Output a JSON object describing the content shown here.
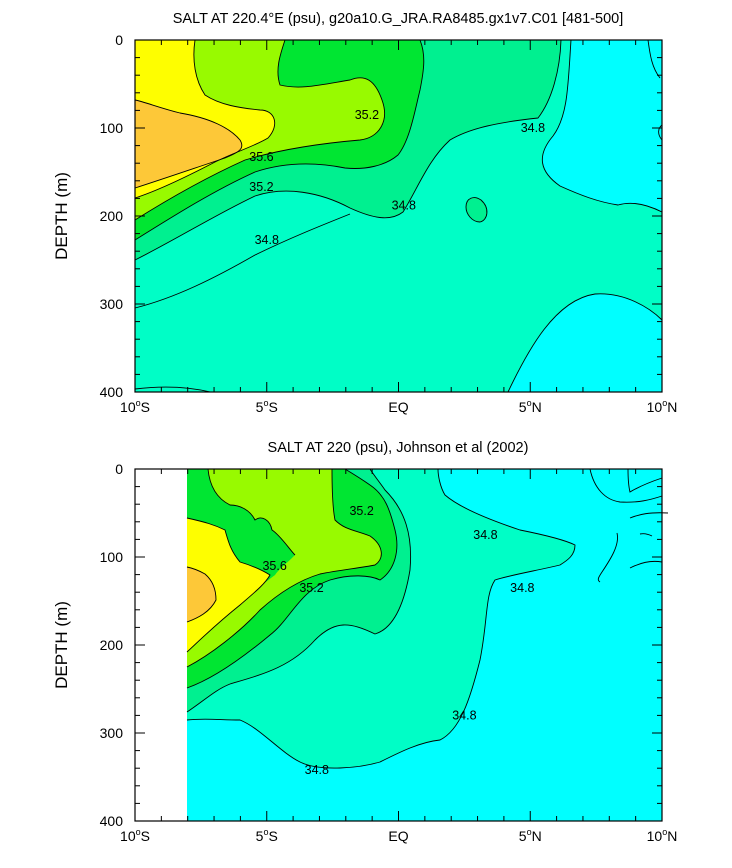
{
  "colors": {
    "c_low": "#00ffff",
    "c_348": "#00fec6",
    "c_350": "#00f090",
    "c_352": "#00e632",
    "c_354": "#98fa00",
    "c_356": "#fefe00",
    "c_358": "#fdc838",
    "missing": "#ffffff"
  },
  "chart_data": [
    {
      "type": "contour",
      "title": "SALT AT 220.4°E (psu), g20a10.G_JRA.RA8485.gx1v7.C01 [481-500]",
      "ylabel": "DEPTH (m)",
      "xlabel": "",
      "xlim": [
        -10,
        10
      ],
      "ylim": [
        400,
        0
      ],
      "xticks": [
        -10,
        -5,
        0,
        5,
        10
      ],
      "xtick_labels": [
        "10°S",
        "5°S",
        "EQ",
        "5°N",
        "10°N"
      ],
      "yticks": [
        0,
        100,
        200,
        300,
        400
      ],
      "ytick_labels": [
        "0",
        "100",
        "200",
        "300",
        "400"
      ],
      "contour_labels": [
        {
          "text": "35.6",
          "lat": -5.2,
          "depth": 133
        },
        {
          "text": "35.2",
          "lat": -5.2,
          "depth": 167
        },
        {
          "text": "34.8",
          "lat": -5.0,
          "depth": 227
        },
        {
          "text": "35.2",
          "lat": -1.2,
          "depth": 85
        },
        {
          "text": "34.8",
          "lat": 5.1,
          "depth": 100
        },
        {
          "text": "34.8",
          "lat": 0.2,
          "depth": 188
        }
      ]
    },
    {
      "type": "contour",
      "title": "SALT AT 220 (psu), Johnson et al (2002)",
      "ylabel": "DEPTH (m)",
      "xlabel": "",
      "xlim": [
        -10,
        10
      ],
      "ylim": [
        400,
        0
      ],
      "xticks": [
        -10,
        -5,
        0,
        5,
        10
      ],
      "xtick_labels": [
        "10°S",
        "5°S",
        "EQ",
        "5°N",
        "10°N"
      ],
      "yticks": [
        0,
        100,
        200,
        300,
        400
      ],
      "ytick_labels": [
        "0",
        "100",
        "200",
        "300",
        "400"
      ],
      "data_lat_min": -8,
      "contour_labels": [
        {
          "text": "35.2",
          "lat": -1.4,
          "depth": 48
        },
        {
          "text": "35.6",
          "lat": -4.7,
          "depth": 110
        },
        {
          "text": "35.2",
          "lat": -3.3,
          "depth": 135
        },
        {
          "text": "34.8",
          "lat": 3.3,
          "depth": 75
        },
        {
          "text": "34.8",
          "lat": 4.7,
          "depth": 135
        },
        {
          "text": "34.8",
          "lat": 2.5,
          "depth": 280
        },
        {
          "text": "34.8",
          "lat": -3.1,
          "depth": 342
        }
      ]
    }
  ]
}
